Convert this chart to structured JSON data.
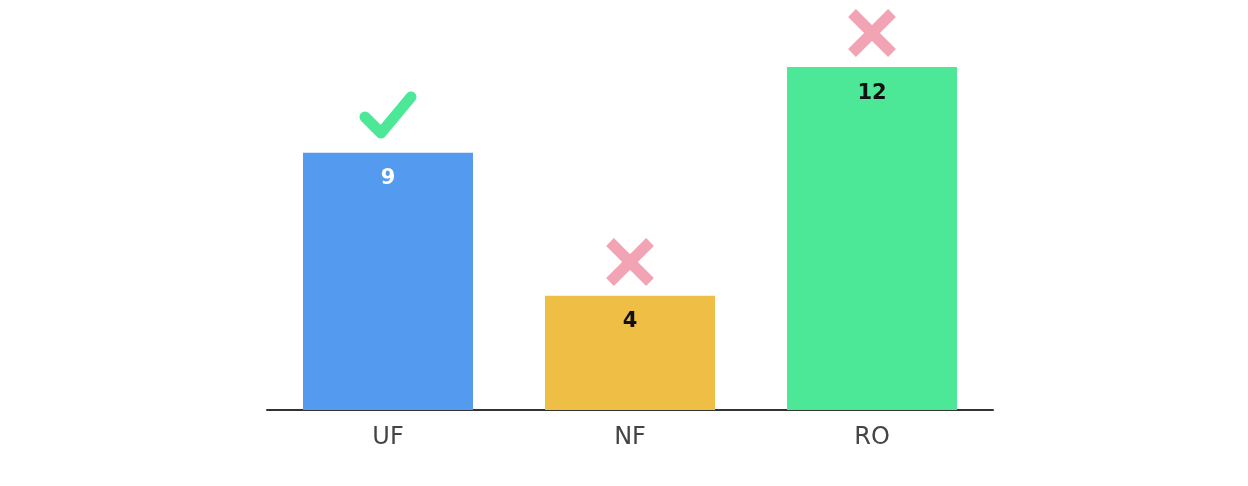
{
  "chart_data": {
    "type": "bar",
    "categories": [
      "UF",
      "NF",
      "RO"
    ],
    "values": [
      9,
      4,
      12
    ],
    "colors": [
      "#549bf0",
      "#efbf45",
      "#4de897"
    ],
    "data_labels": true
  }
}
